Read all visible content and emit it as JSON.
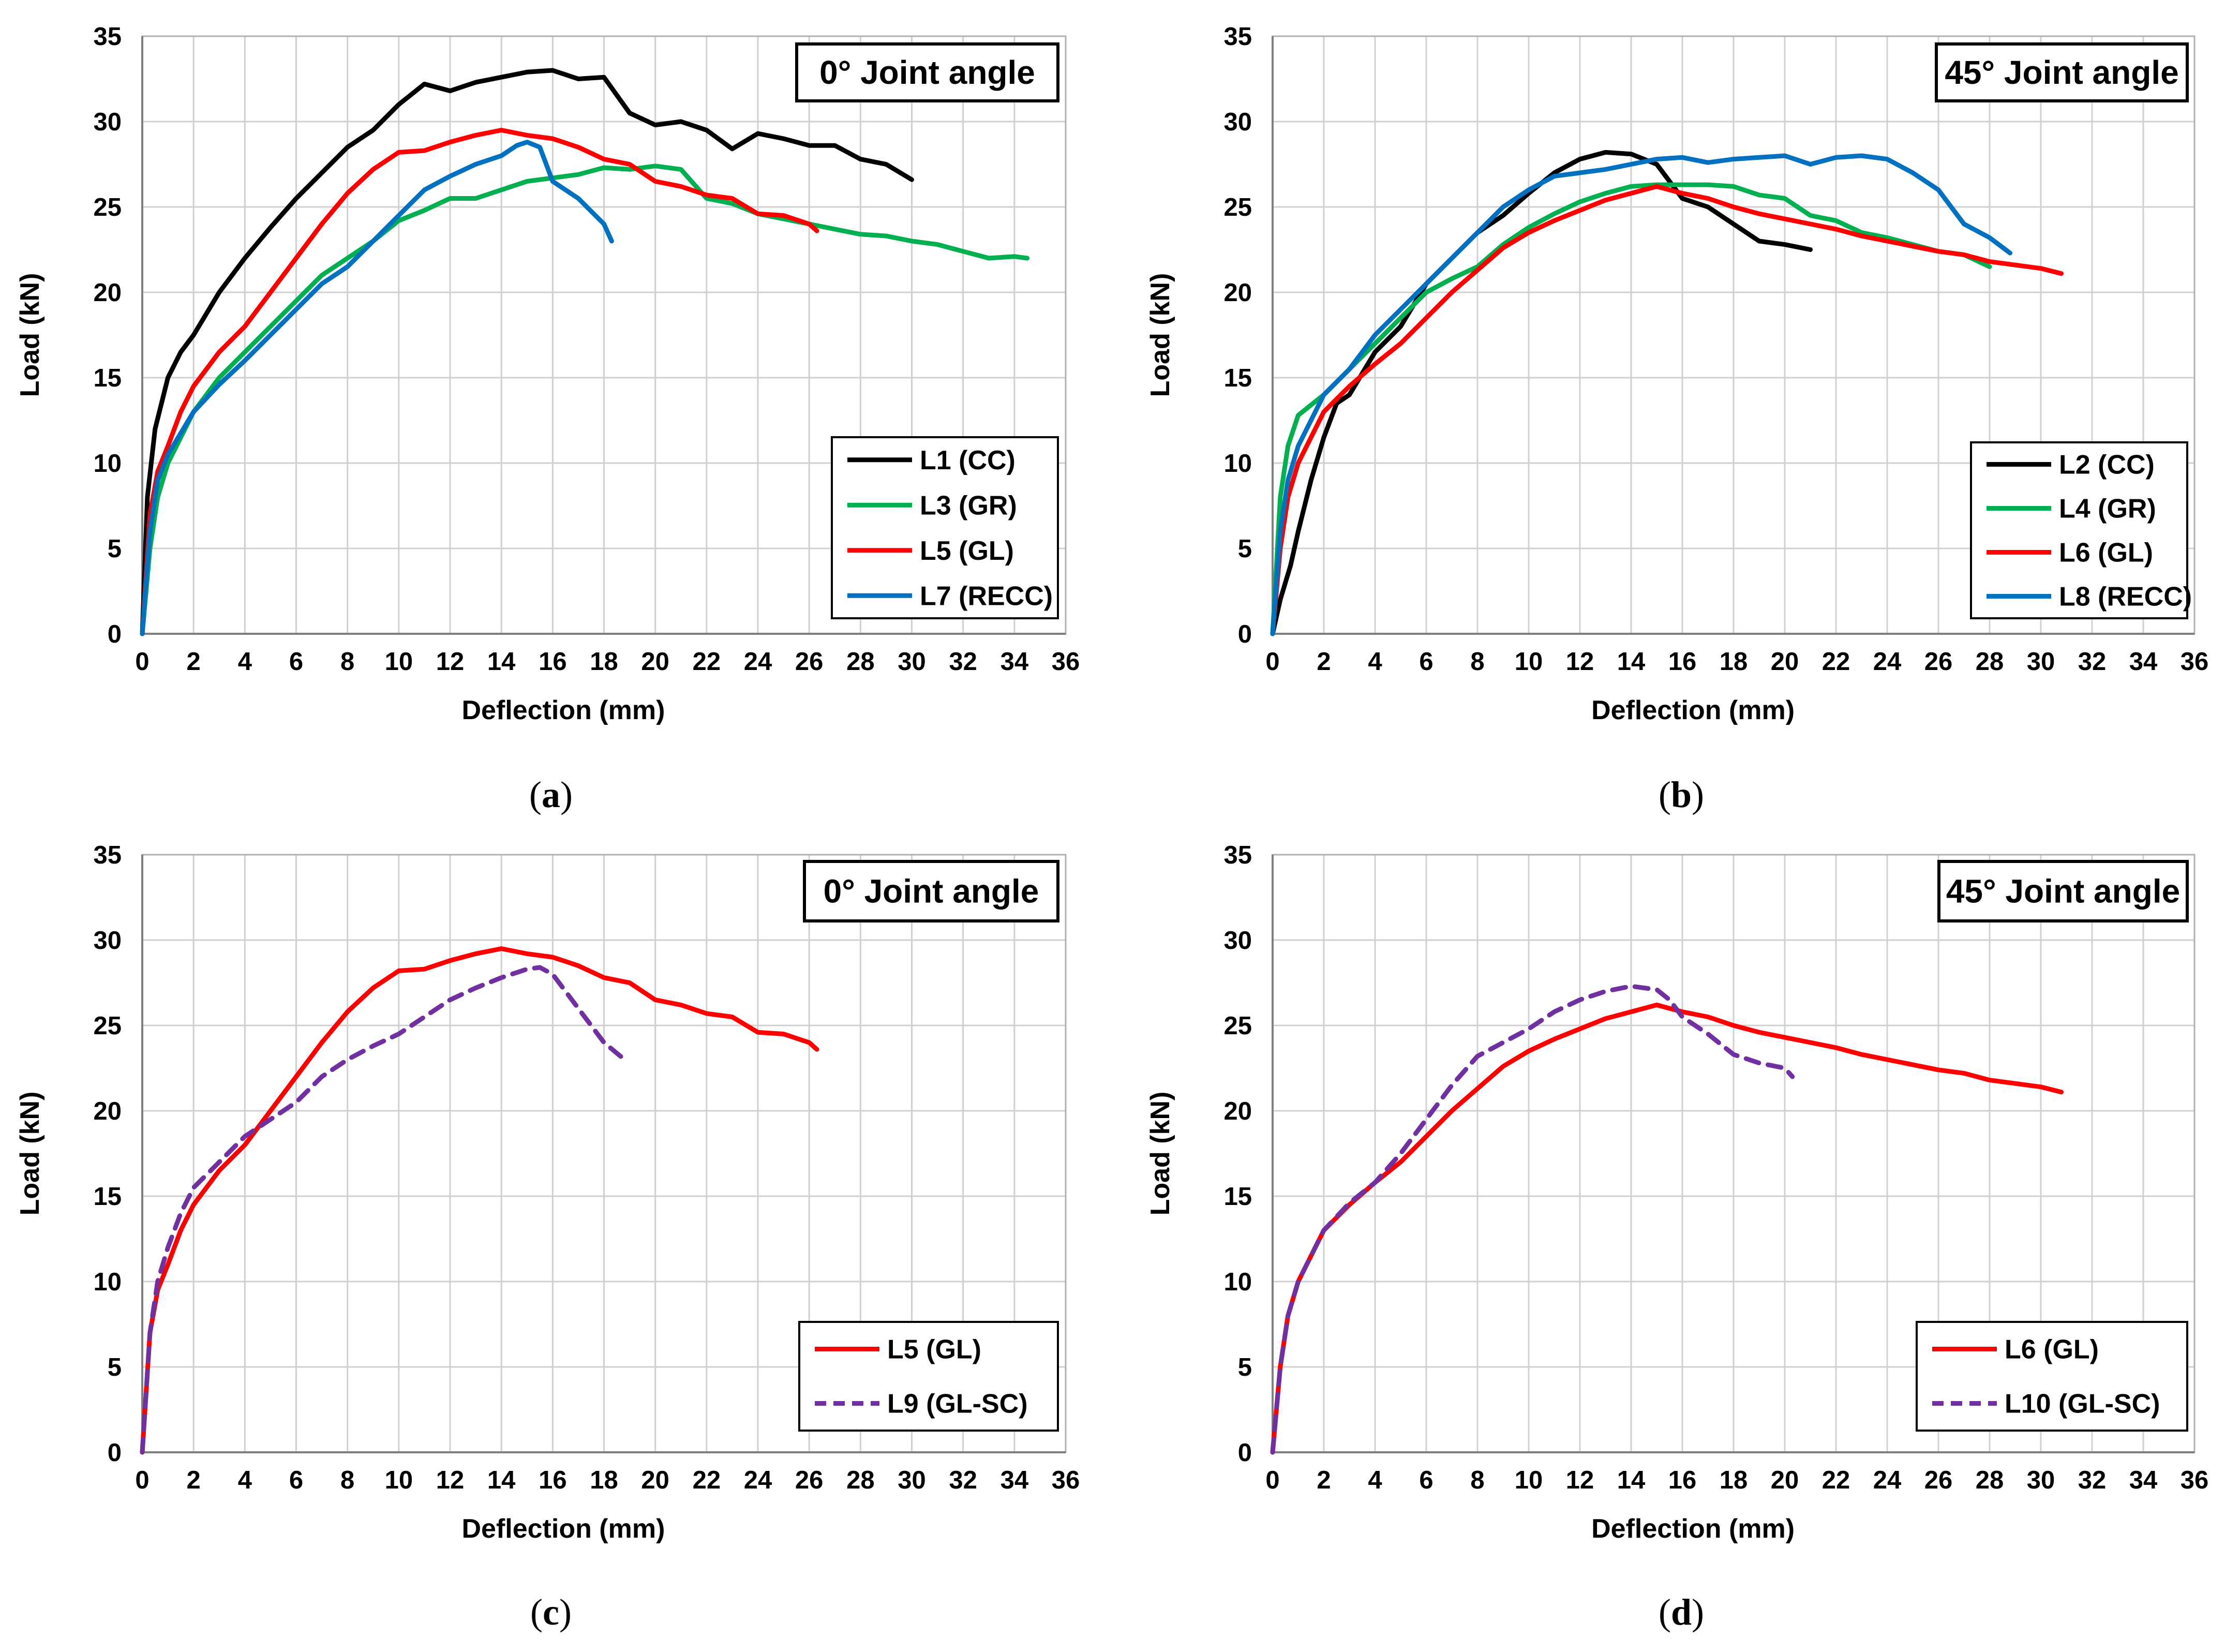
{
  "chart_data": [
    {
      "type": "line",
      "panel": "a",
      "caption": "a",
      "annotation": "0° Joint angle",
      "xlabel": "Deflection (mm)",
      "ylabel": "Load (kN)",
      "xlim": [
        0,
        36
      ],
      "ylim": [
        0,
        35
      ],
      "xticks": [
        "0",
        "2",
        "4",
        "6",
        "8",
        "10",
        "12",
        "14",
        "16",
        "18",
        "20",
        "22",
        "24",
        "26",
        "28",
        "30",
        "32",
        "34",
        "36"
      ],
      "yticks": [
        "0",
        "5",
        "10",
        "15",
        "20",
        "25",
        "30",
        "35"
      ],
      "grid": true,
      "legend_position": "bottom-right",
      "series": [
        {
          "name": "L1 (CC)",
          "color": "#000000",
          "dash": "solid",
          "x": [
            0,
            0.2,
            0.5,
            1,
            1.5,
            2,
            3,
            4,
            5,
            6,
            7,
            8,
            9,
            10,
            11,
            12,
            13,
            14,
            15,
            16,
            17,
            18,
            19,
            20,
            21,
            22,
            23,
            24,
            25,
            26,
            27,
            28,
            29,
            30
          ],
          "y": [
            0,
            8,
            12,
            15,
            16.5,
            17.5,
            20,
            22,
            23.8,
            25.5,
            27,
            28.5,
            29.5,
            31,
            32.2,
            31.8,
            32.3,
            32.6,
            32.9,
            33,
            32.5,
            32.6,
            30.5,
            29.8,
            30,
            29.5,
            28.4,
            29.3,
            29,
            28.6,
            28.6,
            27.8,
            27.5,
            26.6
          ]
        },
        {
          "name": "L3 (GR)",
          "color": "#00b050",
          "dash": "solid",
          "x": [
            0,
            0.3,
            0.6,
            1,
            2,
            3,
            4,
            5,
            6,
            7,
            8,
            9,
            10,
            11,
            12,
            13,
            14,
            15,
            16,
            17,
            18,
            19,
            20,
            21,
            22,
            23,
            24,
            25,
            26,
            27,
            28,
            29,
            30,
            31,
            32,
            33,
            34,
            34.5
          ],
          "y": [
            0,
            5,
            8,
            10,
            13,
            15,
            16.5,
            18,
            19.5,
            21,
            22,
            23,
            24.2,
            24.8,
            25.5,
            25.5,
            26,
            26.5,
            26.7,
            26.9,
            27.3,
            27.2,
            27.4,
            27.2,
            25.5,
            25.2,
            24.6,
            24.3,
            24,
            23.7,
            23.4,
            23.3,
            23,
            22.8,
            22.4,
            22,
            22.1,
            22
          ]
        },
        {
          "name": "L5 (GL)",
          "color": "#ff0000",
          "dash": "solid",
          "x": [
            0,
            0.3,
            0.6,
            1,
            1.5,
            2,
            3,
            4,
            5,
            6,
            7,
            8,
            9,
            10,
            11,
            12,
            13,
            14,
            15,
            16,
            17,
            18,
            19,
            20,
            21,
            22,
            23,
            24,
            25,
            26,
            26.3
          ],
          "y": [
            0,
            7,
            9.5,
            11,
            13,
            14.5,
            16.5,
            18,
            20,
            22,
            24,
            25.8,
            27.2,
            28.2,
            28.3,
            28.8,
            29.2,
            29.5,
            29.2,
            29,
            28.5,
            27.8,
            27.5,
            26.5,
            26.2,
            25.7,
            25.5,
            24.6,
            24.5,
            24,
            23.6
          ]
        },
        {
          "name": "L7 (RECC)",
          "color": "#0070c0",
          "dash": "solid",
          "x": [
            0,
            0.3,
            0.6,
            1,
            2,
            3,
            4,
            5,
            6,
            7,
            8,
            9,
            10,
            11,
            12,
            13,
            14,
            14.6,
            15,
            15.5,
            16,
            17,
            18,
            18.3
          ],
          "y": [
            0,
            6,
            9,
            10.5,
            13,
            14.6,
            16,
            17.5,
            19,
            20.5,
            21.5,
            23,
            24.5,
            26,
            26.8,
            27.5,
            28,
            28.6,
            28.8,
            28.5,
            26.5,
            25.5,
            24,
            23
          ]
        }
      ]
    },
    {
      "type": "line",
      "panel": "b",
      "caption": "b",
      "annotation": "45° Joint angle",
      "xlabel": "Deflection (mm)",
      "ylabel": "Load (kN)",
      "xlim": [
        0,
        36
      ],
      "ylim": [
        0,
        35
      ],
      "xticks": [
        "0",
        "2",
        "4",
        "6",
        "8",
        "10",
        "12",
        "14",
        "16",
        "18",
        "20",
        "22",
        "24",
        "26",
        "28",
        "30",
        "32",
        "34",
        "36"
      ],
      "yticks": [
        "0",
        "5",
        "10",
        "15",
        "20",
        "25",
        "30",
        "35"
      ],
      "grid": true,
      "legend_position": "bottom-right",
      "series": [
        {
          "name": "L2 (CC)",
          "color": "#000000",
          "dash": "solid",
          "x": [
            0,
            0.3,
            0.7,
            1,
            1.5,
            2,
            2.5,
            3,
            4,
            5,
            6,
            7,
            8,
            9,
            10,
            11,
            12,
            13,
            14,
            15,
            16,
            17,
            18,
            19,
            20,
            21
          ],
          "y": [
            0,
            2,
            4,
            6,
            9,
            11.5,
            13.5,
            14,
            16.5,
            18,
            20.5,
            22,
            23.5,
            24.5,
            25.8,
            27,
            27.8,
            28.2,
            28.1,
            27.5,
            25.5,
            25,
            24,
            23,
            22.8,
            22.5
          ]
        },
        {
          "name": "L4 (GR)",
          "color": "#00b050",
          "dash": "solid",
          "x": [
            0,
            0.3,
            0.6,
            1,
            2,
            3,
            4,
            5,
            6,
            7,
            8,
            9,
            10,
            11,
            12,
            13,
            14,
            15,
            16,
            17,
            18,
            19,
            20,
            21,
            22,
            23,
            24,
            25,
            26,
            27,
            28
          ],
          "y": [
            0,
            8,
            11,
            12.8,
            14,
            15.5,
            17,
            18.5,
            20,
            20.8,
            21.5,
            22.8,
            23.8,
            24.6,
            25.3,
            25.8,
            26.2,
            26.3,
            26.3,
            26.3,
            26.2,
            25.7,
            25.5,
            24.5,
            24.2,
            23.5,
            23.2,
            22.8,
            22.4,
            22.2,
            21.5
          ]
        },
        {
          "name": "L6 (GL)",
          "color": "#ff0000",
          "dash": "solid",
          "x": [
            0,
            0.3,
            0.6,
            1,
            2,
            3,
            4,
            5,
            6,
            7,
            8,
            9,
            10,
            11,
            12,
            13,
            14,
            15,
            16,
            17,
            18,
            19,
            20,
            21,
            22,
            23,
            24,
            25,
            26,
            27,
            28,
            29,
            30,
            30.8
          ],
          "y": [
            0,
            5,
            8,
            10,
            13,
            14.5,
            15.8,
            17,
            18.5,
            20,
            21.3,
            22.6,
            23.5,
            24.2,
            24.8,
            25.4,
            25.8,
            26.2,
            25.8,
            25.5,
            25,
            24.6,
            24.3,
            24,
            23.7,
            23.3,
            23,
            22.7,
            22.4,
            22.2,
            21.8,
            21.6,
            21.4,
            21.1
          ]
        },
        {
          "name": "L8 (RECC)",
          "color": "#0070c0",
          "dash": "solid",
          "x": [
            0,
            0.3,
            0.6,
            1,
            2,
            3,
            4,
            5,
            6,
            7,
            8,
            9,
            10,
            11,
            12,
            13,
            14,
            15,
            16,
            17,
            18,
            19,
            20,
            21,
            22,
            23,
            24,
            25,
            26,
            27,
            28,
            28.8
          ],
          "y": [
            0,
            6,
            9,
            11,
            14,
            15.5,
            17.5,
            19,
            20.5,
            22,
            23.5,
            25,
            26,
            26.8,
            27,
            27.2,
            27.5,
            27.8,
            27.9,
            27.6,
            27.8,
            27.9,
            28,
            27.5,
            27.9,
            28,
            27.8,
            27,
            26,
            24,
            23.2,
            22.3
          ]
        }
      ]
    },
    {
      "type": "line",
      "panel": "c",
      "caption": "c",
      "annotation": "0° Joint angle",
      "xlabel": "Deflection (mm)",
      "ylabel": "Load (kN)",
      "xlim": [
        0,
        36
      ],
      "ylim": [
        0,
        35
      ],
      "xticks": [
        "0",
        "2",
        "4",
        "6",
        "8",
        "10",
        "12",
        "14",
        "16",
        "18",
        "20",
        "22",
        "24",
        "26",
        "28",
        "30",
        "32",
        "34",
        "36"
      ],
      "yticks": [
        "0",
        "5",
        "10",
        "15",
        "20",
        "25",
        "30",
        "35"
      ],
      "grid": true,
      "legend_position": "bottom-right",
      "series": [
        {
          "name": "L5 (GL)",
          "color": "#ff0000",
          "dash": "solid",
          "x": [
            0,
            0.3,
            0.6,
            1,
            1.5,
            2,
            3,
            4,
            5,
            6,
            7,
            8,
            9,
            10,
            11,
            12,
            13,
            14,
            15,
            16,
            17,
            18,
            19,
            20,
            21,
            22,
            23,
            24,
            25,
            26,
            26.3
          ],
          "y": [
            0,
            7,
            9.5,
            11,
            13,
            14.5,
            16.5,
            18,
            20,
            22,
            24,
            25.8,
            27.2,
            28.2,
            28.3,
            28.8,
            29.2,
            29.5,
            29.2,
            29,
            28.5,
            27.8,
            27.5,
            26.5,
            26.2,
            25.7,
            25.5,
            24.6,
            24.5,
            24,
            23.6
          ]
        },
        {
          "name": "L9 (GL-SC)",
          "color": "#7030a0",
          "dash": "dashed",
          "x": [
            0,
            0.3,
            0.6,
            1,
            1.5,
            2,
            3,
            4,
            5,
            6,
            7,
            8,
            9,
            10,
            11,
            12,
            13,
            14,
            15,
            15.5,
            16,
            17,
            18,
            18.8
          ],
          "y": [
            0,
            7,
            10,
            12,
            14,
            15.5,
            17,
            18.5,
            19.5,
            20.5,
            22,
            23,
            23.8,
            24.5,
            25.5,
            26.5,
            27.2,
            27.8,
            28.3,
            28.4,
            28,
            26,
            24,
            23
          ]
        }
      ]
    },
    {
      "type": "line",
      "panel": "d",
      "caption": "d",
      "annotation": "45° Joint angle",
      "xlabel": "Deflection (mm)",
      "ylabel": "Load (kN)",
      "xlim": [
        0,
        36
      ],
      "ylim": [
        0,
        35
      ],
      "xticks": [
        "0",
        "2",
        "4",
        "6",
        "8",
        "10",
        "12",
        "14",
        "16",
        "18",
        "20",
        "22",
        "24",
        "26",
        "28",
        "30",
        "32",
        "34",
        "36"
      ],
      "yticks": [
        "0",
        "5",
        "10",
        "15",
        "20",
        "25",
        "30",
        "35"
      ],
      "grid": true,
      "legend_position": "bottom-right",
      "series": [
        {
          "name": "L6 (GL)",
          "color": "#ff0000",
          "dash": "solid",
          "x": [
            0,
            0.3,
            0.6,
            1,
            2,
            3,
            4,
            5,
            6,
            7,
            8,
            9,
            10,
            11,
            12,
            13,
            14,
            15,
            16,
            17,
            18,
            19,
            20,
            21,
            22,
            23,
            24,
            25,
            26,
            27,
            28,
            29,
            30,
            30.8
          ],
          "y": [
            0,
            5,
            8,
            10,
            13,
            14.5,
            15.8,
            17,
            18.5,
            20,
            21.3,
            22.6,
            23.5,
            24.2,
            24.8,
            25.4,
            25.8,
            26.2,
            25.8,
            25.5,
            25,
            24.6,
            24.3,
            24,
            23.7,
            23.3,
            23,
            22.7,
            22.4,
            22.2,
            21.8,
            21.6,
            21.4,
            21.1
          ]
        },
        {
          "name": "L10 (GL-SC)",
          "color": "#7030a0",
          "dash": "dashed",
          "x": [
            0,
            0.3,
            0.6,
            1,
            2,
            3,
            4,
            5,
            6,
            7,
            8,
            9,
            10,
            11,
            12,
            13,
            14,
            15,
            15.5,
            16,
            17,
            18,
            19,
            20,
            20.3
          ],
          "y": [
            0,
            5,
            8,
            10,
            13,
            14.6,
            15.8,
            17.5,
            19.5,
            21.5,
            23.2,
            24,
            24.8,
            25.8,
            26.5,
            27,
            27.3,
            27.1,
            26.5,
            25.5,
            24.5,
            23.3,
            22.8,
            22.5,
            22
          ]
        }
      ]
    }
  ]
}
